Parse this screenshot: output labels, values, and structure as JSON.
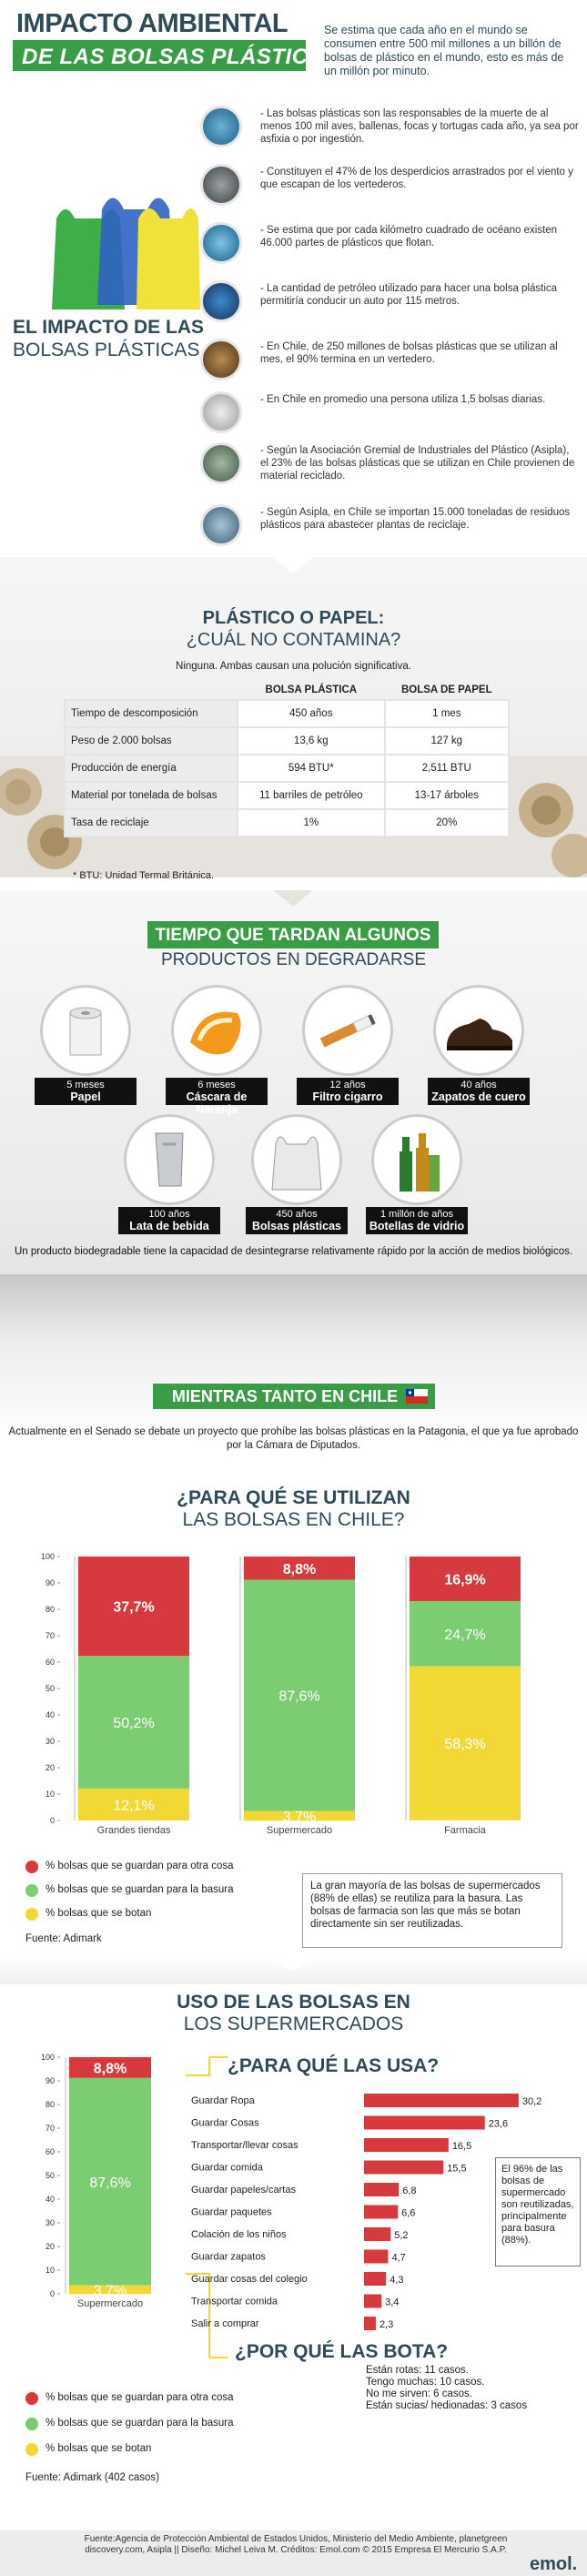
{
  "header": {
    "title": "IMPACTO AMBIENTAL",
    "subtitle": "DE LAS BOLSAS PLÁSTICAS",
    "description": "Se estima que cada año en el mundo se consumen entre 500 mil millones a un billón de bolsas de plástico en el mundo, esto es más de un millón por minuto."
  },
  "impact": {
    "title_bold": "EL IMPACTO DE LAS",
    "title_light": "BOLSAS PLÁSTICAS",
    "facts": [
      {
        "icon": "turtle-photo",
        "text": "- Las bolsas plásticas son las responsables de la muerte de al menos 100 mil aves, ballenas, focas y tortugas cada año, ya sea por asfixia o por ingestión."
      },
      {
        "icon": "wind-debris-photo",
        "text": "- Constituyen el 47% de los desperdicios arrastrados por el viento y que escapan de los vertederos."
      },
      {
        "icon": "ocean-bag-photo",
        "text": "- Se estima que por cada kilómetro cuadrado de océano existen 46.000 partes de plásticos que flotan."
      },
      {
        "icon": "car-photo",
        "text": "- La cantidad de petróleo utilizado para hacer una bolsa plástica permitiría conducir un auto por 115 metros."
      },
      {
        "icon": "chile-bags-photo",
        "text": "- En Chile, de 250 millones de bolsas plásticas que se utilizan al mes, el 90% termina en un vertedero."
      },
      {
        "icon": "person-bags-photo",
        "text": "- En Chile en promedio una persona utiliza 1,5 bolsas diarias."
      },
      {
        "icon": "recycling-photo",
        "text": "- Según la Asociación Gremial de Industriales del Plástico (Asipla), el 23% de las bolsas plásticas que se utilizan en Chile provienen de material reciclado."
      },
      {
        "icon": "plant-photo",
        "text": "- Según Asipla, en Chile se importan 15.000 toneladas de residuos plásticos para abastecer plantas de reciclaje."
      }
    ]
  },
  "comparison": {
    "title_bold": "PLÁSTICO O PAPEL:",
    "title_light": "¿CUÁL NO CONTAMINA?",
    "note": "Ninguna. Ambas causan una polución significativa.",
    "col_plastic": "BOLSA PLÁSTICA",
    "col_paper": "BOLSA DE PAPEL",
    "rows": [
      {
        "label": "Tiempo de descomposición",
        "plastic": "450 años",
        "paper": "1 mes"
      },
      {
        "label": "Peso de 2.000 bolsas",
        "plastic": "13,6 kg",
        "paper": "127 kg"
      },
      {
        "label": "Producción de energía",
        "plastic": "594 BTU*",
        "paper": "2,511 BTU"
      },
      {
        "label": "Material por tonelada de bolsas",
        "plastic": "11 barriles de petróleo",
        "paper": "13-17 árboles"
      },
      {
        "label": "Tasa de reciclaje",
        "plastic": "1%",
        "paper": "20%"
      }
    ],
    "footnote": "* BTU: Unidad Termal Británica."
  },
  "degrade": {
    "title_bold": "TIEMPO QUE TARDAN ALGUNOS",
    "title_light": "PRODUCTOS EN DEGRADARSE",
    "products": [
      {
        "time": "5 meses",
        "name": "Papel",
        "icon": "paper-roll-icon"
      },
      {
        "time": "6 meses",
        "name": "Cáscara de Naranja",
        "icon": "orange-peel-icon"
      },
      {
        "time": "12 años",
        "name": "Filtro cigarro",
        "icon": "cigarette-icon"
      },
      {
        "time": "40 años",
        "name": "Zapatos de cuero",
        "icon": "shoe-icon"
      },
      {
        "time": "100 años",
        "name": "Lata de bebida",
        "icon": "can-icon"
      },
      {
        "time": "450 años",
        "name": "Bolsas plásticas",
        "icon": "plastic-bag-icon"
      },
      {
        "time": "1 millón de años",
        "name": "Botellas de vidrio",
        "icon": "glass-bottle-icon"
      }
    ],
    "footer": "Un producto biodegradable tiene la capacidad de desintegrarse relativamente rápido por la acción de medios biológicos."
  },
  "chile": {
    "title": "MIENTRAS TANTO EN CHILE",
    "text": "Actualmente en el Senado se debate un proyecto que prohíbe las bolsas plásticas en la Patagonia, el que ya fue aprobado por la Cámara de Diputados."
  },
  "usage": {
    "title_bold": "¿PARA QUÉ SE UTILIZAN",
    "title_light": "LAS BOLSAS EN CHILE?",
    "legend": [
      "% bolsas que se guardan para otra cosa",
      "% bolsas que se guardan para la basura",
      "% bolsas que se botan"
    ],
    "note": "La gran mayoría de las bolsas de supermercados (88% de ellas) se reutiliza para la basura. Las bolsas de farmacia son las que más se botan directamente sin ser reutilizadas.",
    "source": "Fuente: Adimark"
  },
  "supermarket": {
    "title_bold": "USO DE LAS BOLSAS EN",
    "title_light": "LOS SUPERMERCADOS",
    "question1": "¿PARA QUÉ LAS USA?",
    "side_note": "El 96% de las bolsas de supermercado son reutilizadas, principalmente para basura (88%).",
    "question2": "¿POR QUÉ LAS BOTA?",
    "why_lines": [
      "Están rotas: 11 casos.",
      "Tengo muchas: 10 casos.",
      "No me sirven: 6 casos.",
      "Están sucias/ hedionadas: 3 casos"
    ],
    "legend": [
      "% bolsas que se guardan para otra cosa",
      "% bolsas que se guardan para la basura",
      "% bolsas que se botan"
    ],
    "source": "Fuente: Adimark (402 casos)"
  },
  "footer": {
    "credits": "Fuente:Agencia de Protección Ambiental de Estados Unidos, Ministerio del Medio Ambiente, planetgreen discovery.com, Asipla || Diseño: Michel Leiva M. Créditos: Emol.com © 2015 Empresa El Mercurio S.A.P.",
    "brand": "emol."
  },
  "colors": {
    "green": "#3a9c46",
    "red": "#d63a3f",
    "lightgreen": "#7ccd72",
    "yellow": "#f2d835",
    "navy": "#2f4a58"
  },
  "chart_data": [
    {
      "type": "bar",
      "title": "¿PARA QUÉ SE UTILIZAN LAS BOLSAS EN CHILE?",
      "stacked": true,
      "categories": [
        "Grandes tiendas",
        "Supermercado",
        "Farmacia"
      ],
      "series": [
        {
          "name": "% bolsas que se guardan para otra cosa",
          "values": [
            37.7,
            8.8,
            16.9
          ],
          "labels": [
            "37,7%",
            "8,8%",
            "16,9%"
          ]
        },
        {
          "name": "% bolsas que se guardan para la basura",
          "values": [
            50.2,
            87.6,
            24.7
          ],
          "labels": [
            "50,2%",
            "87,6%",
            "24,7%"
          ]
        },
        {
          "name": "% bolsas que se botan",
          "values": [
            12.1,
            3.7,
            58.3
          ],
          "labels": [
            "12,1%",
            "3,7%",
            "58,3%"
          ]
        }
      ],
      "ylim": [
        0,
        100
      ],
      "yticks": [
        0,
        10,
        20,
        30,
        40,
        50,
        60,
        70,
        80,
        90,
        100
      ]
    },
    {
      "type": "bar",
      "stacked": true,
      "categories": [
        "Supermercado"
      ],
      "series": [
        {
          "name": "% bolsas que se guardan para otra cosa",
          "values": [
            8.8
          ],
          "labels": [
            "8,8%"
          ]
        },
        {
          "name": "% bolsas que se guardan para la basura",
          "values": [
            87.6
          ],
          "labels": [
            "87,6%"
          ]
        },
        {
          "name": "% bolsas que se botan",
          "values": [
            3.7
          ],
          "labels": [
            "3,7%"
          ]
        }
      ],
      "ylim": [
        0,
        100
      ],
      "yticks": [
        0,
        10,
        20,
        30,
        40,
        50,
        60,
        70,
        80,
        90,
        100
      ]
    },
    {
      "type": "bar",
      "orientation": "horizontal",
      "title": "¿PARA QUÉ LAS USA?",
      "categories": [
        "Guardar Ropa",
        "Guardar Cosas",
        "Transportar/llevar cosas",
        "Guardar comida",
        "Guardar papeles/cartas",
        "Guardar paquetes",
        "Colación de los niños",
        "Guardar zapatos",
        "Guardar cosas del colegio",
        "Transportar comida",
        "Salir a comprar"
      ],
      "values": [
        30.2,
        23.6,
        16.5,
        15.5,
        6.8,
        6.6,
        5.2,
        4.7,
        4.3,
        3.4,
        2.3
      ],
      "labels": [
        "30,2",
        "23,6",
        "16,5",
        "15,5",
        "6,8",
        "6,6",
        "5,2",
        "4,7",
        "4,3",
        "3,4",
        "2,3"
      ]
    }
  ]
}
